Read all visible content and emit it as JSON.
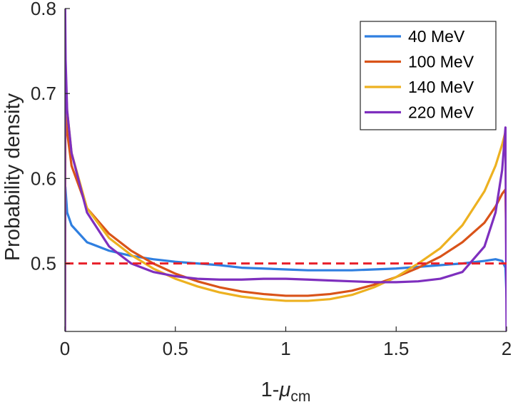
{
  "chart_data": {
    "type": "line",
    "title": "",
    "xlabel_main": "1-",
    "xlabel_symbol": "μ",
    "xlabel_sub": "cm",
    "ylabel": "Probability density",
    "xlim": [
      0,
      2
    ],
    "ylim": [
      0.42,
      0.8
    ],
    "xticks": [
      0,
      0.5,
      1,
      1.5,
      2
    ],
    "xtick_labels": [
      "0",
      "0.5",
      "1",
      "1.5",
      "2"
    ],
    "yticks": [
      0.5,
      0.6,
      0.7,
      0.8
    ],
    "ytick_labels": [
      "0.5",
      "0.6",
      "0.7",
      "0.8"
    ],
    "grid": false,
    "legend_position": "top-right",
    "reference_line": {
      "y": 0.5,
      "style": "dashed",
      "color": "#e8202a"
    },
    "series": [
      {
        "name": "40 MeV",
        "color": "#2f7fe0",
        "x": [
          0.0,
          0.002,
          0.01,
          0.03,
          0.1,
          0.2,
          0.3,
          0.4,
          0.5,
          0.6,
          0.7,
          0.8,
          0.9,
          1.0,
          1.1,
          1.2,
          1.3,
          1.4,
          1.5,
          1.6,
          1.7,
          1.8,
          1.9,
          1.95,
          1.98,
          1.995,
          2.0
        ],
        "y": [
          0.42,
          0.59,
          0.56,
          0.545,
          0.525,
          0.515,
          0.509,
          0.505,
          0.502,
          0.5,
          0.498,
          0.495,
          0.494,
          0.493,
          0.492,
          0.492,
          0.492,
          0.493,
          0.494,
          0.496,
          0.498,
          0.5,
          0.503,
          0.505,
          0.503,
          0.495,
          0.46
        ]
      },
      {
        "name": "100 MeV",
        "color": "#d95319",
        "x": [
          0.0,
          0.002,
          0.01,
          0.03,
          0.1,
          0.2,
          0.3,
          0.4,
          0.5,
          0.6,
          0.7,
          0.8,
          0.9,
          1.0,
          1.1,
          1.2,
          1.3,
          1.4,
          1.5,
          1.6,
          1.7,
          1.8,
          1.9,
          1.95,
          1.98,
          1.995,
          2.0
        ],
        "y": [
          0.42,
          0.68,
          0.655,
          0.615,
          0.565,
          0.535,
          0.515,
          0.5,
          0.488,
          0.479,
          0.472,
          0.467,
          0.464,
          0.462,
          0.462,
          0.464,
          0.468,
          0.475,
          0.484,
          0.495,
          0.508,
          0.525,
          0.548,
          0.567,
          0.582,
          0.587,
          0.5
        ]
      },
      {
        "name": "140 MeV",
        "color": "#edb120",
        "x": [
          0.0,
          0.002,
          0.01,
          0.03,
          0.1,
          0.2,
          0.3,
          0.4,
          0.5,
          0.6,
          0.7,
          0.8,
          0.9,
          1.0,
          1.1,
          1.2,
          1.3,
          1.4,
          1.5,
          1.6,
          1.7,
          1.8,
          1.9,
          1.95,
          1.98,
          1.995,
          2.0
        ],
        "y": [
          0.42,
          0.72,
          0.68,
          0.63,
          0.565,
          0.53,
          0.51,
          0.494,
          0.482,
          0.473,
          0.466,
          0.461,
          0.458,
          0.456,
          0.456,
          0.458,
          0.463,
          0.472,
          0.484,
          0.5,
          0.518,
          0.545,
          0.585,
          0.615,
          0.64,
          0.655,
          0.5
        ]
      },
      {
        "name": "220 MeV",
        "color": "#7e2fbe",
        "x": [
          0.0,
          0.001,
          0.003,
          0.01,
          0.03,
          0.1,
          0.2,
          0.3,
          0.4,
          0.5,
          0.6,
          0.7,
          0.8,
          0.9,
          1.0,
          1.1,
          1.2,
          1.3,
          1.4,
          1.5,
          1.6,
          1.7,
          1.8,
          1.9,
          1.95,
          1.98,
          1.995,
          2.0
        ],
        "y": [
          0.42,
          0.8,
          0.74,
          0.68,
          0.63,
          0.56,
          0.52,
          0.5,
          0.49,
          0.485,
          0.482,
          0.481,
          0.481,
          0.482,
          0.482,
          0.481,
          0.48,
          0.479,
          0.478,
          0.478,
          0.479,
          0.482,
          0.49,
          0.52,
          0.56,
          0.61,
          0.66,
          0.42
        ]
      }
    ]
  }
}
